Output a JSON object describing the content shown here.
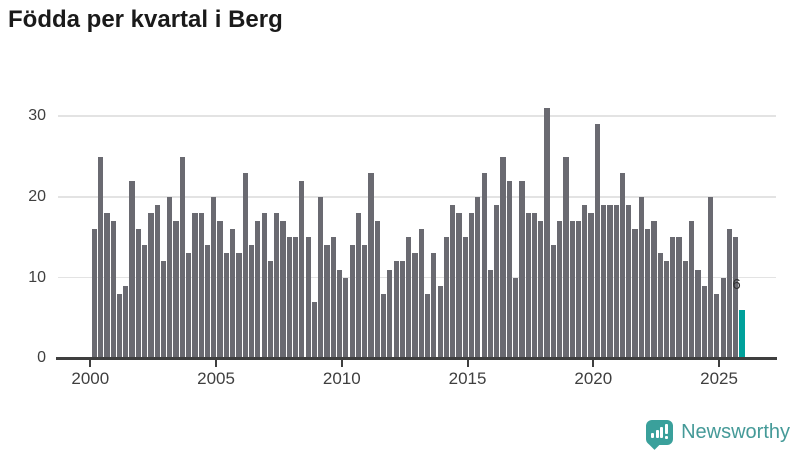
{
  "title": "Födda per kvartal i Berg",
  "logo": {
    "text": "Newsworthy"
  },
  "colors": {
    "bar": "#6a6a71",
    "highlight": "#00a19b",
    "title_text": "#1a1a1a",
    "axis_text": "#3f3f3f",
    "gridline": "#e3e3e3",
    "axis_line": "#3f3f3f",
    "logo_teal": "#3aa09b",
    "logo_text": "#459a98"
  },
  "chart_data": {
    "type": "bar",
    "title": "Födda per kvartal i Berg",
    "x_unit": "quarter",
    "x_start": "2000 Q1",
    "x_tick_labels": [
      "2000",
      "2005",
      "2010",
      "2015",
      "2020",
      "2025"
    ],
    "quarters_between_ticks": 20,
    "y_ticks": [
      0,
      10,
      20,
      30
    ],
    "ylim": [
      0,
      31
    ],
    "grid": "horizontal",
    "legend": "none",
    "values": [
      16,
      25,
      18,
      17,
      8,
      9,
      22,
      16,
      14,
      18,
      19,
      12,
      20,
      17,
      25,
      13,
      18,
      18,
      14,
      20,
      17,
      13,
      16,
      13,
      23,
      14,
      17,
      18,
      12,
      18,
      17,
      15,
      15,
      22,
      15,
      7,
      20,
      14,
      15,
      11,
      10,
      14,
      18,
      14,
      23,
      17,
      8,
      11,
      12,
      12,
      15,
      13,
      16,
      8,
      13,
      9,
      15,
      19,
      18,
      15,
      18,
      20,
      23,
      11,
      19,
      25,
      22,
      10,
      22,
      18,
      18,
      17,
      31,
      14,
      17,
      25,
      17,
      17,
      19,
      18,
      29,
      19,
      19,
      19,
      23,
      19,
      16,
      20,
      16,
      17,
      13,
      12,
      15,
      15,
      12,
      17,
      11,
      9,
      20,
      8,
      10,
      16,
      15,
      6
    ],
    "highlight": {
      "index": 103,
      "value": 6,
      "label": "6",
      "color": "#00a19b"
    }
  }
}
